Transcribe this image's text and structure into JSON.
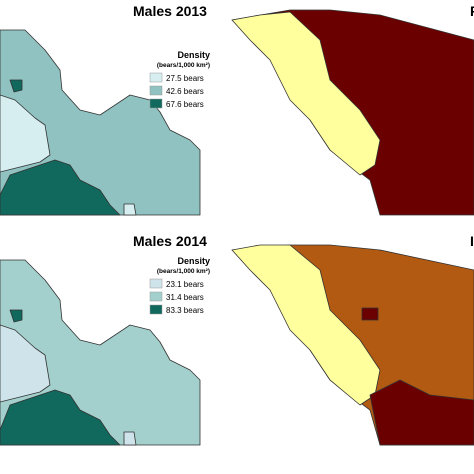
{
  "panels": [
    {
      "title": "Males 2013",
      "legend": {
        "title": "Density",
        "units": "(bears/1,000 km²)",
        "items": [
          {
            "label": "27.5 bears",
            "color": "#d6eef0"
          },
          {
            "label": "42.6 bears",
            "color": "#8fc2c0"
          },
          {
            "label": "67.6 bears",
            "color": "#11695e"
          }
        ]
      }
    },
    {
      "title": "F"
    },
    {
      "title": "Males 2014",
      "legend": {
        "title": "Density",
        "units": "(bears/1,000 km²)",
        "items": [
          {
            "label": "23.1 bears",
            "color": "#cfe3ea"
          },
          {
            "label": "31.4 bears",
            "color": "#a3d0cc"
          },
          {
            "label": "83.3 bears",
            "color": "#11695e"
          }
        ]
      }
    },
    {
      "title": "I"
    }
  ]
}
